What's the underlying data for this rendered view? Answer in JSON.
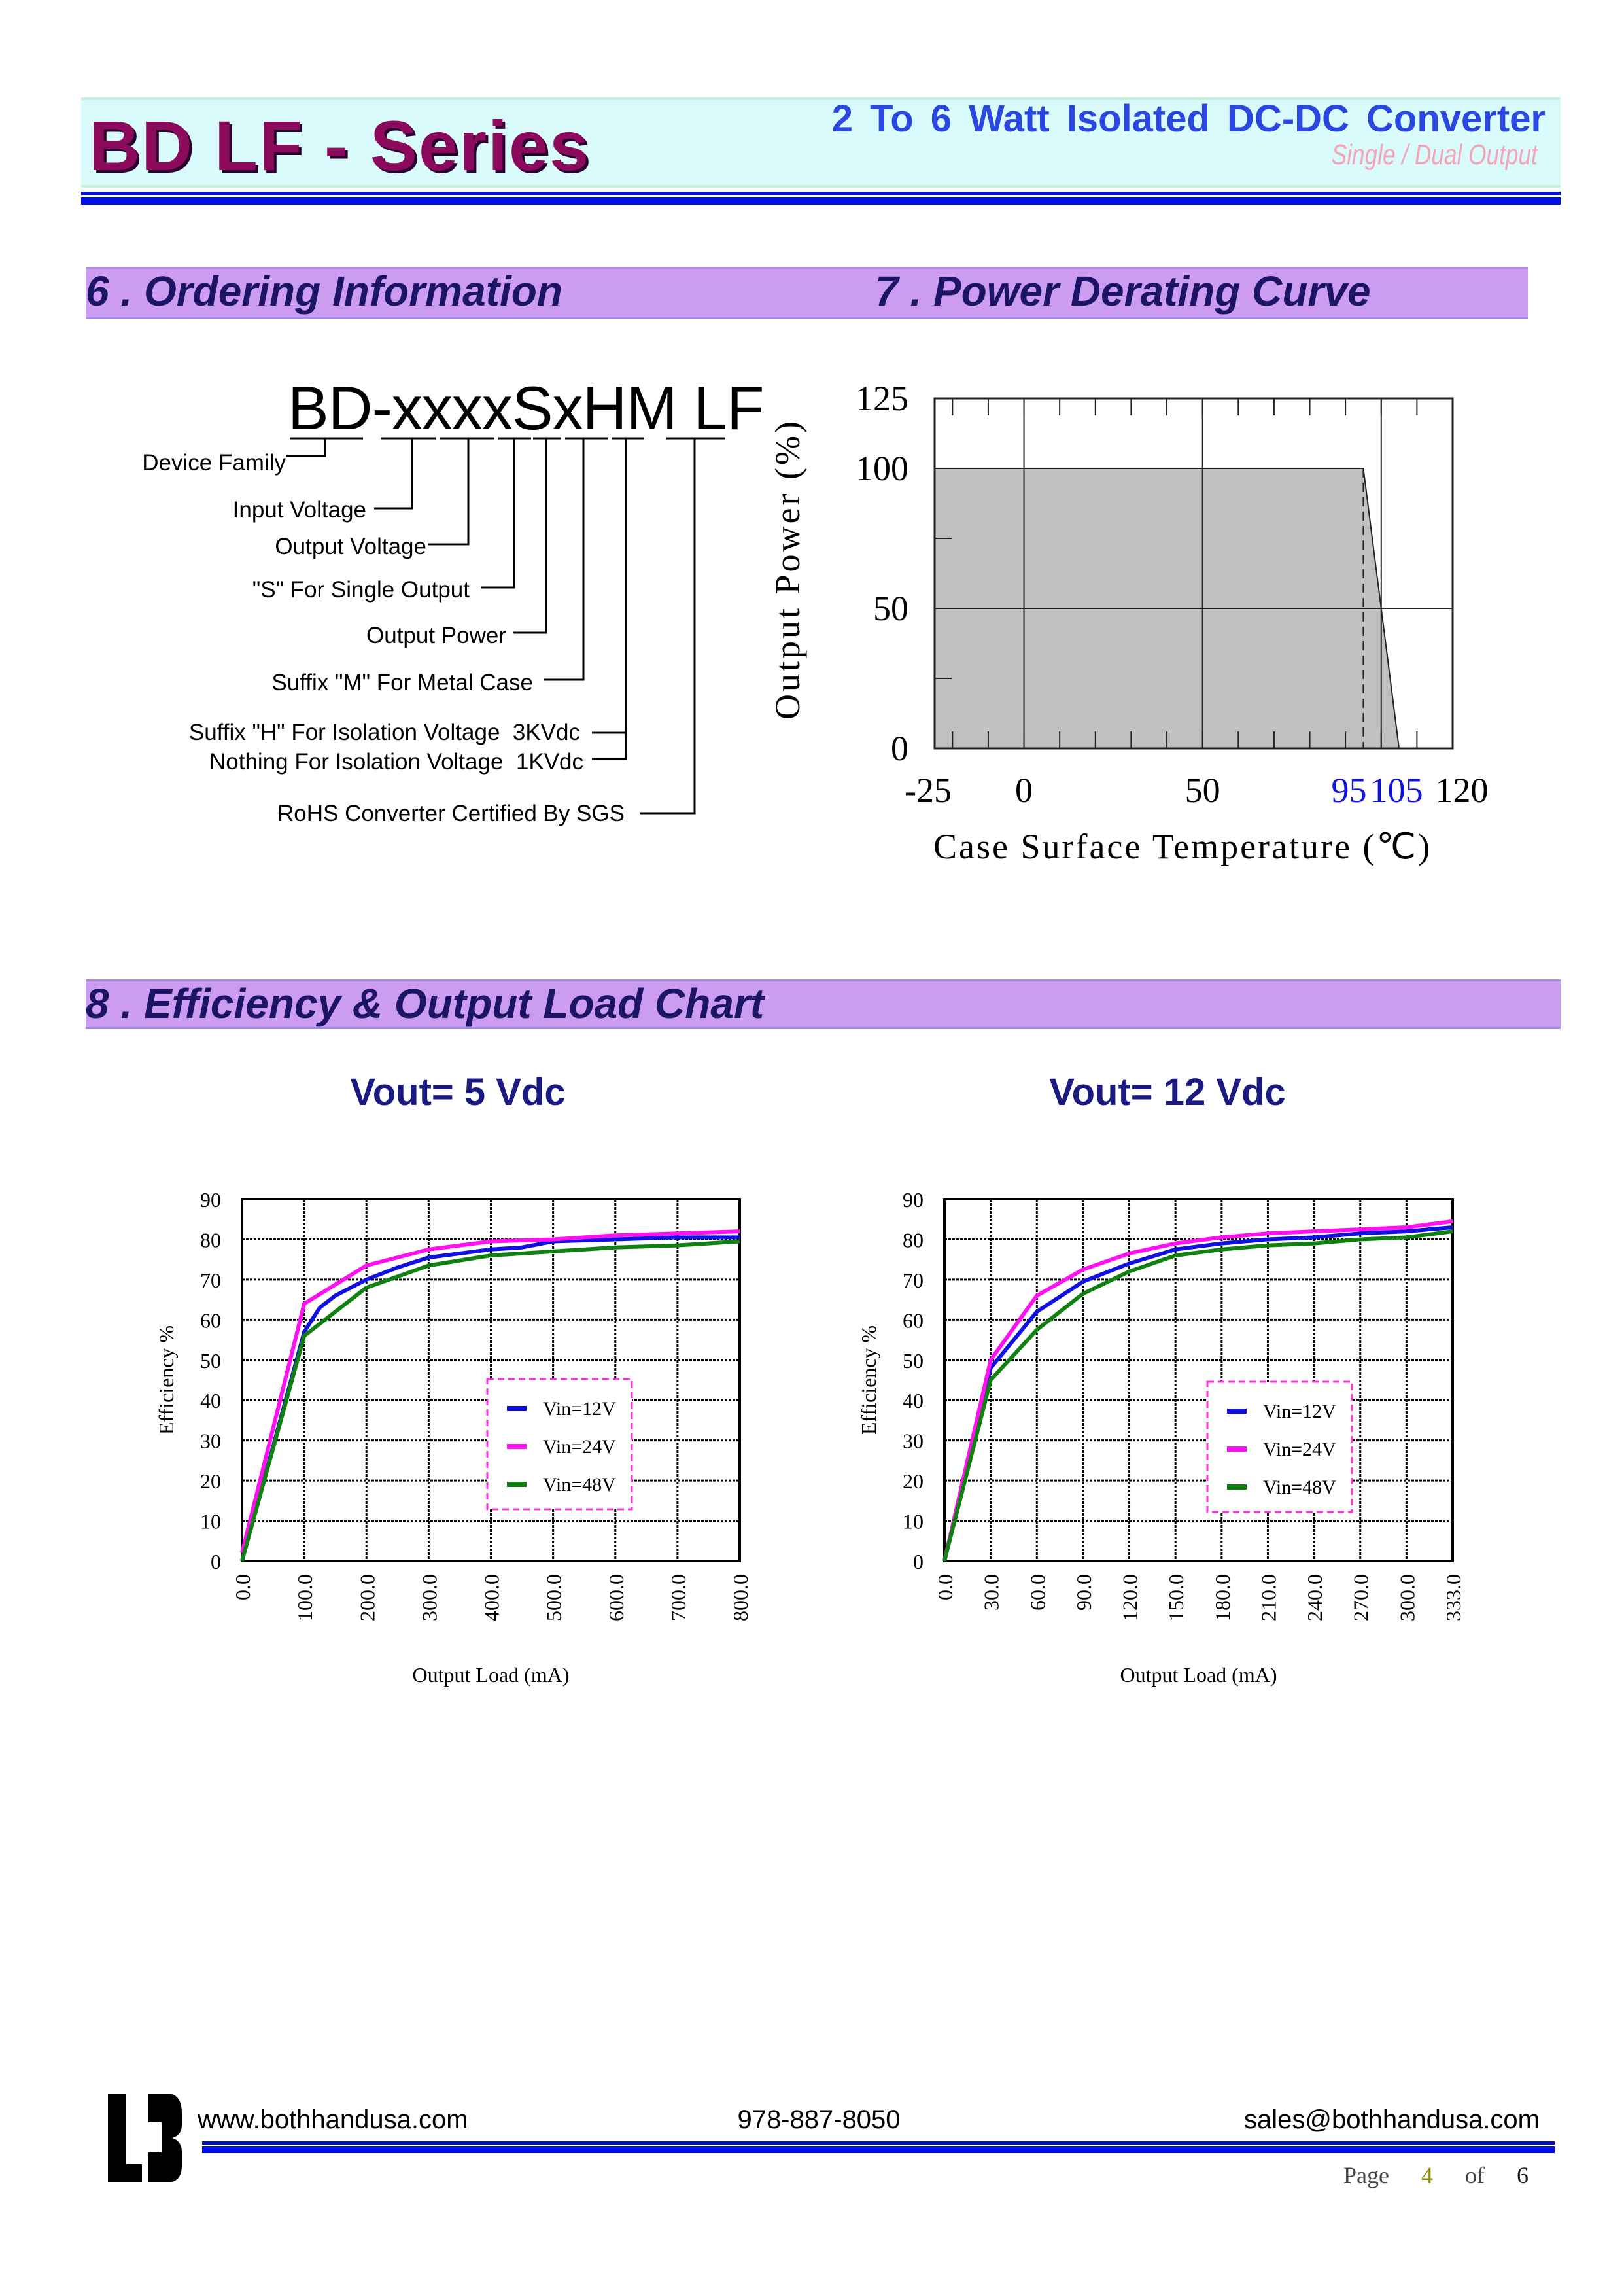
{
  "header": {
    "title": "BD LF - Series",
    "subtitle": "2 To 6 Watt Isolated DC-DC Converter",
    "subtitle2": "Single / Dual Output"
  },
  "sections": {
    "s6": "6 . Ordering Information",
    "s7": "7 . Power Derating Curve",
    "s8": "8 . Efficiency & Output Load Chart"
  },
  "ordering": {
    "code": "BD-xxxxSxHM LF",
    "labels": [
      "Device Family",
      "Input Voltage",
      "Output Voltage",
      "\"S\" For Single Output",
      "Output Power",
      "Suffix \"M\" For Metal Case",
      "Suffix \"H\" For Isolation Voltage  3KVdc",
      "Nothing For Isolation Voltage  1KVdc",
      "RoHS Converter Certified By SGS"
    ]
  },
  "chart_data": [
    {
      "type": "area",
      "title": "Power Derating Curve",
      "xlabel": "Case Surface Temperature (℃)",
      "ylabel": "Output Power (%)",
      "xlim": [
        -25,
        120
      ],
      "ylim": [
        0,
        125
      ],
      "x": [
        -25,
        95,
        105
      ],
      "y": [
        100,
        100,
        0
      ],
      "xticks": [
        "-25",
        "0",
        "50",
        "95",
        "105",
        "120"
      ],
      "xtick_values": [
        -25,
        0,
        50,
        95,
        105,
        120
      ],
      "highlight_ticks": [
        "95",
        "105"
      ],
      "yticks": [
        "0",
        "50",
        "100",
        "125"
      ],
      "ytick_values": [
        0,
        50,
        100,
        125
      ],
      "grid": true,
      "fill_color": "#c0c0c0",
      "highlight_color": "#1010e0"
    },
    {
      "type": "line",
      "title": "Vout= 5 Vdc",
      "xlabel": "Output Load (mA)",
      "ylabel": "Efficiency %",
      "ylim": [
        0,
        90
      ],
      "xlim": [
        0,
        800
      ],
      "xticks": [
        "0.0",
        "100.0",
        "200.0",
        "300.0",
        "400.0",
        "500.0",
        "600.0",
        "700.0",
        "800.0"
      ],
      "yticks": [
        "0",
        "10",
        "20",
        "30",
        "40",
        "50",
        "60",
        "70",
        "80",
        "90"
      ],
      "legend": "center-right",
      "grid": true,
      "series": [
        {
          "name": "Vin=12V",
          "color": "#1010e0",
          "x": [
            0,
            100,
            125,
            150,
            200,
            250,
            300,
            400,
            450,
            500,
            600,
            700,
            800
          ],
          "y": [
            0,
            57,
            63,
            66,
            70,
            73,
            75.5,
            77.5,
            78,
            79.5,
            80,
            80.5,
            80.5
          ]
        },
        {
          "name": "Vin=24V",
          "color": "#ff10f0",
          "x": [
            0,
            100,
            200,
            300,
            400,
            500,
            600,
            700,
            800
          ],
          "y": [
            2,
            64,
            73.5,
            77.5,
            79.5,
            80,
            81,
            81.5,
            82
          ]
        },
        {
          "name": "Vin=48V",
          "color": "#108010",
          "x": [
            0,
            100,
            200,
            300,
            400,
            500,
            600,
            700,
            800
          ],
          "y": [
            0,
            56,
            68,
            73.5,
            76,
            77,
            78,
            78.5,
            79.5
          ]
        }
      ]
    },
    {
      "type": "line",
      "title": "Vout= 12 Vdc",
      "xlabel": "Output Load (mA)",
      "ylabel": "Efficiency %",
      "ylim": [
        0,
        90
      ],
      "categories": [
        "0.0",
        "30.0",
        "60.0",
        "90.0",
        "120.0",
        "150.0",
        "180.0",
        "210.0",
        "240.0",
        "270.0",
        "300.0",
        "333.0"
      ],
      "xticks": [
        "0.0",
        "30.0",
        "60.0",
        "90.0",
        "120.0",
        "150.0",
        "180.0",
        "210.0",
        "240.0",
        "270.0",
        "300.0",
        "333.0"
      ],
      "yticks": [
        "0",
        "10",
        "20",
        "30",
        "40",
        "50",
        "60",
        "70",
        "80",
        "90"
      ],
      "legend": "center-right",
      "grid": true,
      "series": [
        {
          "name": "Vin=12V",
          "color": "#1010e0",
          "y": [
            0,
            48,
            62,
            69.5,
            74,
            77.5,
            79,
            80,
            80.5,
            81.5,
            82,
            83
          ]
        },
        {
          "name": "Vin=24V",
          "color": "#ff10f0",
          "y": [
            0,
            50,
            66,
            72.5,
            76.5,
            79,
            80.5,
            81.5,
            82,
            82.5,
            83,
            84.5
          ]
        },
        {
          "name": "Vin=48V",
          "color": "#108010",
          "y": [
            0,
            45,
            57.5,
            66.5,
            72,
            76,
            77.5,
            78.5,
            79,
            80,
            80.5,
            82
          ]
        }
      ]
    }
  ],
  "footer": {
    "website": "www.bothhandusa.com",
    "phone": "978-887-8050",
    "email": "sales@bothhandusa.com",
    "page_label": "Page",
    "page": "4",
    "of_label": "of",
    "total": "6",
    "logo_text": "BH"
  }
}
